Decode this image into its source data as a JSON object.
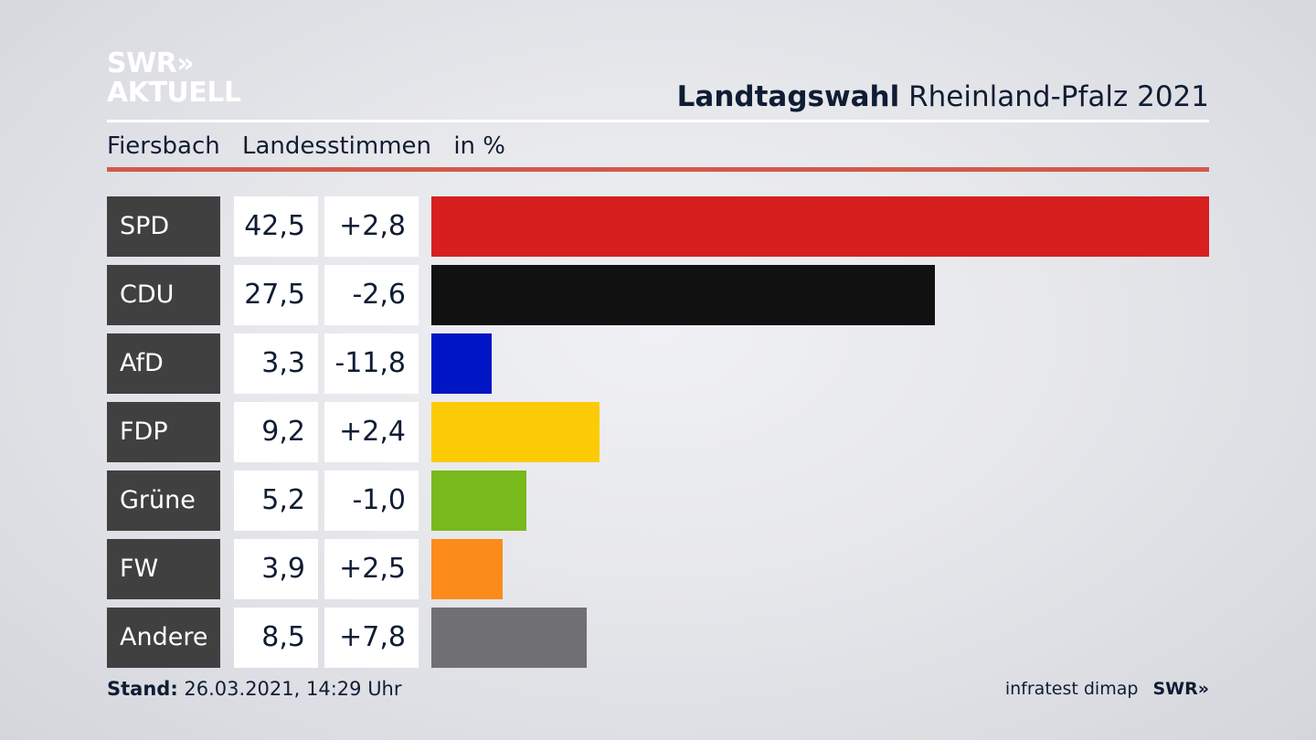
{
  "logo": {
    "line1": "SWR»",
    "line2": "AKTUELL"
  },
  "header": {
    "title_bold": "Landtagswahl",
    "title_rest": "Rheinland-Pfalz 2021",
    "place": "Fiersbach",
    "vote_type": "Landesstimmen",
    "unit": "in %"
  },
  "footer": {
    "stand_label": "Stand:",
    "stand_value": "26.03.2021, 14:29 Uhr",
    "source": "infratest dimap",
    "brand": "SWR»"
  },
  "colors": {
    "accent_rule": "#d35a4a",
    "text": "#0f1d33",
    "party_box": "#404040"
  },
  "chart_data": {
    "type": "bar",
    "orientation": "horizontal",
    "categories": [
      "SPD",
      "CDU",
      "AfD",
      "FDP",
      "Grüne",
      "FW",
      "Andere"
    ],
    "values": [
      42.5,
      27.5,
      3.3,
      9.2,
      5.2,
      3.9,
      8.5
    ],
    "value_labels": [
      "42,5",
      "27,5",
      "3,3",
      "9,2",
      "5,2",
      "3,9",
      "8,5"
    ],
    "diff_labels": [
      "+2,8",
      "-2,6",
      "-11,8",
      "+2,4",
      "-1,0",
      "+2,5",
      "+7,8"
    ],
    "diffs": [
      2.8,
      -2.6,
      -11.8,
      2.4,
      -1.0,
      2.5,
      7.8
    ],
    "colors": [
      "#d71f1f",
      "#111111",
      "#0015c4",
      "#fccb06",
      "#78b91c",
      "#fb8b1a",
      "#707073"
    ],
    "xlim": [
      0,
      42.5
    ],
    "grid": false,
    "legend": "none"
  }
}
